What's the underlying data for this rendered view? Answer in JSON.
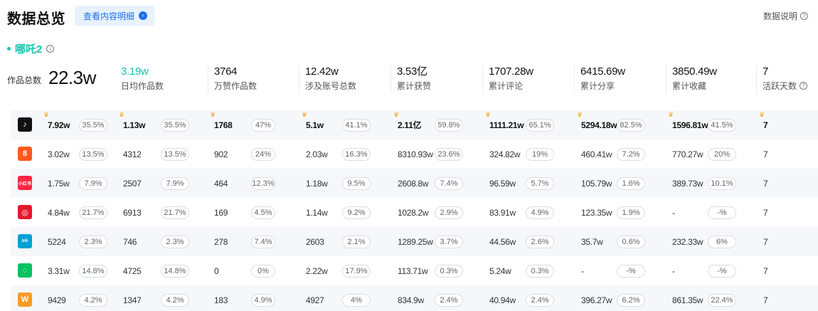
{
  "header": {
    "title": "数据总览",
    "detail_button": "查看内容明细",
    "help": "数据说明"
  },
  "subject": {
    "name": "哪吒2"
  },
  "summary": {
    "total_label": "作品总数",
    "total_value": "22.3w",
    "stats": [
      {
        "value": "3.19w",
        "label": "日均作品数"
      },
      {
        "value": "3764",
        "label": "万赞作品数"
      },
      {
        "value": "12.42w",
        "label": "涉及账号总数"
      },
      {
        "value": "3.53亿",
        "label": "累计获赞"
      },
      {
        "value": "1707.28w",
        "label": "累计评论"
      },
      {
        "value": "6415.69w",
        "label": "累计分享"
      },
      {
        "value": "3850.49w",
        "label": "累计收藏"
      },
      {
        "value": "7",
        "label": "活跃天数"
      }
    ]
  },
  "platforms": [
    {
      "icon": "douyin-icon",
      "color": "#111111",
      "glyph": "♪",
      "cells": [
        [
          "7.92w",
          "35.5%"
        ],
        [
          "1.13w",
          "35.5%"
        ],
        [
          "1768",
          "47%"
        ],
        [
          "5.1w",
          "41.1%"
        ],
        [
          "2.11亿",
          "59.8%"
        ],
        [
          "1111.21w",
          "65.1%"
        ],
        [
          "5294.18w",
          "82.5%"
        ],
        [
          "1596.81w",
          "41.5%"
        ]
      ],
      "days": "7"
    },
    {
      "icon": "kuaishou-icon",
      "color": "#ff5a1f",
      "glyph": "8",
      "cells": [
        [
          "3.02w",
          "13.5%"
        ],
        [
          "4312",
          "13.5%"
        ],
        [
          "902",
          "24%"
        ],
        [
          "2.03w",
          "16.3%"
        ],
        [
          "8310.93w",
          "23.6%"
        ],
        [
          "324.82w",
          "19%"
        ],
        [
          "460.41w",
          "7.2%"
        ],
        [
          "770.27w",
          "20%"
        ]
      ],
      "days": "7"
    },
    {
      "icon": "xiaohongshu-icon",
      "color": "#ff2442",
      "glyph": "小红书",
      "cells": [
        [
          "1.75w",
          "7.9%"
        ],
        [
          "2507",
          "7.9%"
        ],
        [
          "464",
          "12.3%"
        ],
        [
          "1.18w",
          "9.5%"
        ],
        [
          "2608.8w",
          "7.4%"
        ],
        [
          "96.59w",
          "5.7%"
        ],
        [
          "105.79w",
          "1.6%"
        ],
        [
          "389.73w",
          "10.1%"
        ]
      ],
      "days": "7"
    },
    {
      "icon": "weibo-icon",
      "color": "#e6162d",
      "glyph": "◎",
      "cells": [
        [
          "4.84w",
          "21.7%"
        ],
        [
          "6913",
          "21.7%"
        ],
        [
          "169",
          "4.5%"
        ],
        [
          "1.14w",
          "9.2%"
        ],
        [
          "1028.2w",
          "2.9%"
        ],
        [
          "83.91w",
          "4.9%"
        ],
        [
          "123.35w",
          "1.9%"
        ],
        [
          "-",
          "-%"
        ]
      ],
      "days": "7"
    },
    {
      "icon": "bilibili-icon",
      "color": "#00a1d6",
      "glyph": "bili",
      "cells": [
        [
          "5224",
          "2.3%"
        ],
        [
          "746",
          "2.3%"
        ],
        [
          "278",
          "7.4%"
        ],
        [
          "2603",
          "2.1%"
        ],
        [
          "1289.25w",
          "3.7%"
        ],
        [
          "44.56w",
          "2.6%"
        ],
        [
          "35.7w",
          "0.6%"
        ],
        [
          "232.33w",
          "6%"
        ]
      ],
      "days": "7"
    },
    {
      "icon": "wechat-channels-icon",
      "color": "#07c160",
      "glyph": "◌",
      "cells": [
        [
          "3.31w",
          "14.8%"
        ],
        [
          "4725",
          "14.8%"
        ],
        [
          "0",
          "0%"
        ],
        [
          "2.22w",
          "17.9%"
        ],
        [
          "113.71w",
          "0.3%"
        ],
        [
          "5.24w",
          "0.3%"
        ],
        [
          "-",
          "-%"
        ],
        [
          "-",
          "-%"
        ]
      ],
      "days": "7"
    },
    {
      "icon": "zhihu-icon",
      "color": "#fa9a28",
      "glyph": "W",
      "cells": [
        [
          "9429",
          "4.2%"
        ],
        [
          "1347",
          "4.2%"
        ],
        [
          "183",
          "4.9%"
        ],
        [
          "4927",
          "4%"
        ],
        [
          "834.9w",
          "2.4%"
        ],
        [
          "40.94w",
          "2.4%"
        ],
        [
          "396.27w",
          "6.2%"
        ],
        [
          "861.35w",
          "22.4%"
        ]
      ],
      "days": "7"
    }
  ]
}
